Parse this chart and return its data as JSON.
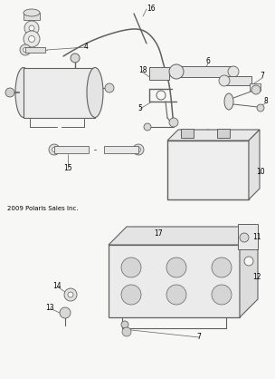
{
  "copyright": "2009 Polaris Sales Inc.",
  "bg_color": "#f7f7f5",
  "line_color": "#606060",
  "text_color": "#000000",
  "fig_width": 3.04,
  "fig_height": 4.18,
  "dpi": 100
}
